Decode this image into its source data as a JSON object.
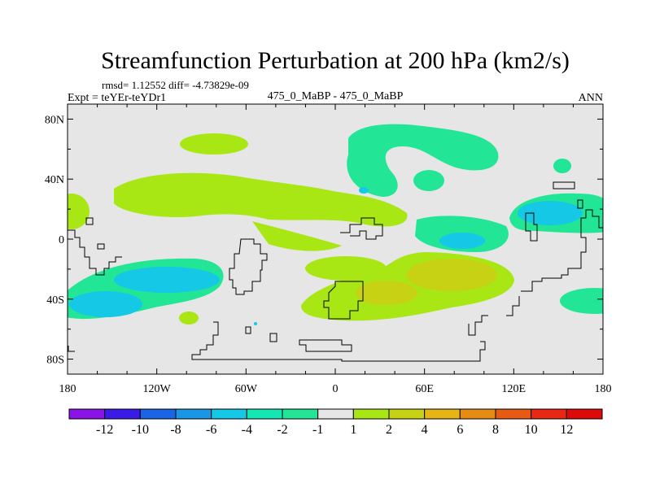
{
  "chart_data": {
    "type": "contour-map",
    "title": "Streamfunction Perturbation at 200 hPa (km2/s)",
    "stats_label": "rmsd= 1.12552 diff= -4.73829e-09",
    "experiment_label": "Expt = teYEr-teYDr1",
    "case_label": "475_0_MaBP - 475_0_MaBP",
    "period_label": "ANN",
    "x_axis": {
      "range": [
        -180,
        180
      ],
      "ticks": [
        -180,
        -120,
        -60,
        0,
        60,
        120,
        180
      ],
      "tick_labels": [
        "180",
        "120W",
        "60W",
        "0",
        "60E",
        "120E",
        "180"
      ]
    },
    "y_axis": {
      "range": [
        -90,
        90
      ],
      "ticks": [
        80,
        40,
        0,
        -40,
        -80
      ],
      "tick_labels": [
        "80N",
        "40N",
        "0",
        "40S",
        "80S"
      ]
    },
    "levels": [
      -12,
      -10,
      -8,
      -6,
      -4,
      -2,
      -1,
      1,
      2,
      4,
      6,
      8,
      10,
      12
    ],
    "level_labels": [
      "-12",
      "-10",
      "-8",
      "-6",
      "-4",
      "-2",
      "-1",
      "1",
      "2",
      "4",
      "6",
      "8",
      "10",
      "12"
    ],
    "colors": [
      "#8a14e8",
      "#3a1ae6",
      "#1a64e6",
      "#1a96e6",
      "#14c8e6",
      "#14e6b4",
      "#22e696",
      "#e6e6e6",
      "#a8e614",
      "#c8d214",
      "#e6b414",
      "#e68c14",
      "#e65a14",
      "#e62814",
      "#dc0a0a"
    ],
    "regions": [
      {
        "name": "n-atlantic-positive",
        "level": "1 to 2",
        "lon": [
          -110,
          0
        ],
        "lat": [
          8,
          45
        ]
      },
      {
        "name": "north-eurasia-negative",
        "level": "-2 to -1",
        "lon": [
          5,
          70
        ],
        "lat": [
          40,
          75
        ]
      },
      {
        "name": "tropical-pacific-negative",
        "level": "-4 to -2",
        "lon": [
          120,
          180
        ],
        "lat": [
          0,
          30
        ]
      },
      {
        "name": "south-pacific-negative",
        "level": "-4 to -2",
        "lon": [
          -180,
          -90
        ],
        "lat": [
          -60,
          -15
        ]
      },
      {
        "name": "south-indian-positive",
        "level": "2 to 4",
        "lon": [
          20,
          120
        ],
        "lat": [
          -50,
          -10
        ]
      }
    ]
  }
}
